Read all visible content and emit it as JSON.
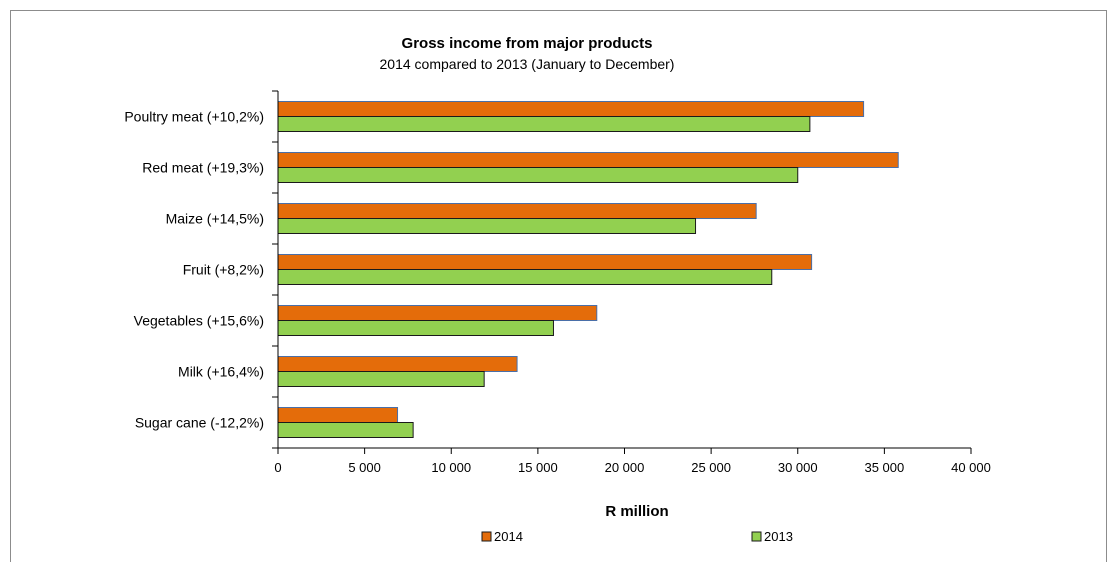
{
  "chart_data": {
    "type": "bar",
    "orientation": "horizontal",
    "title": "Gross income from major products",
    "subtitle": "2014 compared to 2013 (January to December)",
    "xlabel": "R million",
    "ylabel": "",
    "xlim": [
      0,
      40000
    ],
    "x_ticks": [
      0,
      5000,
      10000,
      15000,
      20000,
      25000,
      30000,
      35000,
      40000
    ],
    "x_tick_labels": [
      "0",
      "5 000",
      "10 000",
      "15 000",
      "20 000",
      "25 000",
      "30 000",
      "35 000",
      "40 000"
    ],
    "grid": false,
    "legend_position": "bottom",
    "categories": [
      "Poultry meat (+10,2%)",
      "Red meat (+19,3%)",
      "Maize (+14,5%)",
      "Fruit (+8,2%)",
      "Vegetables (+15,6%)",
      "Milk (+16,4%)",
      "Sugar cane (-12,2%)"
    ],
    "series": [
      {
        "name": "2014",
        "color": "#E46C0A",
        "values": [
          33800,
          35800,
          27600,
          30800,
          18400,
          13800,
          6900
        ]
      },
      {
        "name": "2013",
        "color": "#92D050",
        "values": [
          30700,
          30000,
          24100,
          28500,
          15900,
          11900,
          7800
        ]
      }
    ]
  }
}
